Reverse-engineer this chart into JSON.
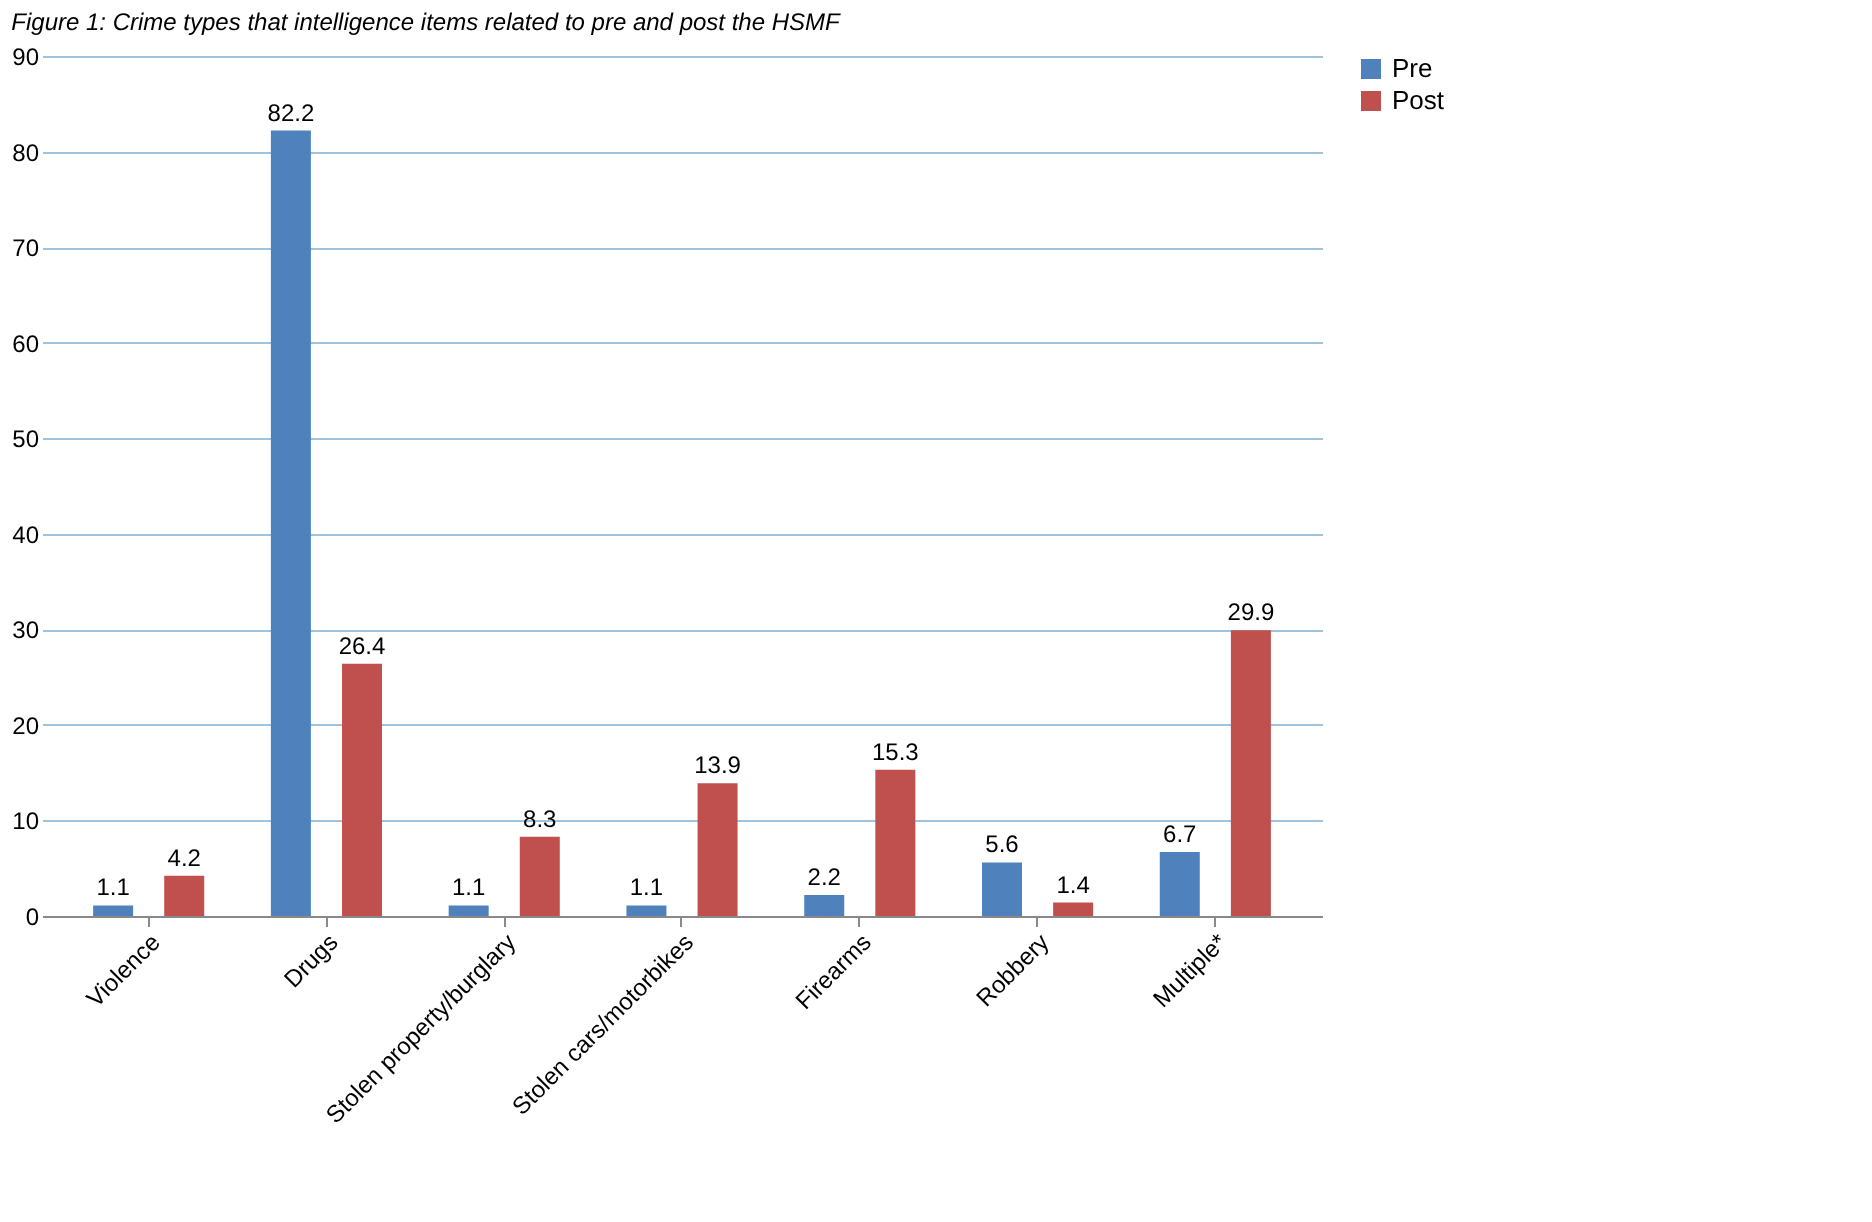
{
  "chart_data": {
    "type": "bar",
    "title": "Figure 1: Crime types that intelligence items related to pre and post the HSMF",
    "categories": [
      "Violence",
      "Drugs",
      "Stolen property/burglary",
      "Stolen cars/motorbikes",
      "Firearms",
      "Robbery",
      "Multiple*"
    ],
    "series": [
      {
        "name": "Pre",
        "color": "#4f81bd",
        "values": [
          1.1,
          82.2,
          1.1,
          1.1,
          2.2,
          5.6,
          6.7
        ]
      },
      {
        "name": "Post",
        "color": "#c0504d",
        "values": [
          4.2,
          26.4,
          8.3,
          13.9,
          15.3,
          1.4,
          29.9
        ]
      }
    ],
    "ylim": [
      0,
      90
    ],
    "yticks": [
      0,
      10,
      20,
      30,
      40,
      50,
      60,
      70,
      80,
      90
    ],
    "grid": "y",
    "legend": "right",
    "data_labels": true
  }
}
